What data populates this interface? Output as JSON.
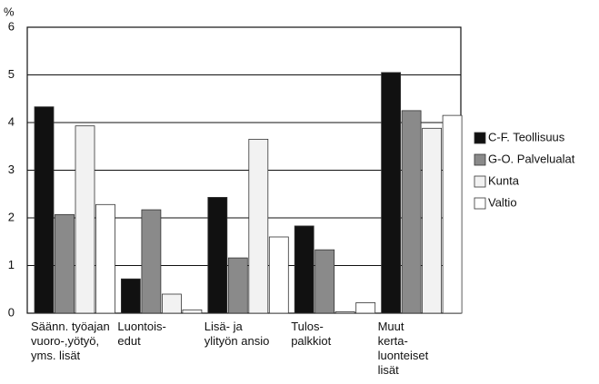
{
  "chart_data": {
    "type": "bar",
    "y_label": "%",
    "categories": [
      [
        "Säänn. työajan",
        "vuoro-,yötyö,",
        "yms. lisät"
      ],
      [
        "Luontois-",
        "edut"
      ],
      [
        "Lisä- ja",
        "ylityön ansio"
      ],
      [
        "Tulos-",
        "palkkiot"
      ],
      [
        "Muut",
        "kerta-",
        "luonteiset",
        "lisät"
      ]
    ],
    "series": [
      {
        "name": "C-F. Teollisuus",
        "color": "#111111",
        "values": [
          4.33,
          0.72,
          2.43,
          1.83,
          5.05
        ]
      },
      {
        "name": "G-O. Palvelualat",
        "color": "#8a8a8a",
        "values": [
          2.07,
          2.17,
          1.16,
          1.33,
          4.25
        ]
      },
      {
        "name": "Kunta",
        "color": "#f2f2f2",
        "values": [
          3.93,
          0.4,
          3.65,
          0.03,
          3.88
        ]
      },
      {
        "name": "Valtio",
        "color": "#ffffff",
        "values": [
          2.28,
          0.07,
          1.6,
          0.22,
          4.15
        ]
      }
    ],
    "ylim": [
      0,
      6
    ],
    "yticks": [
      0,
      1,
      2,
      3,
      4,
      5,
      6
    ],
    "grid": true,
    "legend": "right"
  }
}
